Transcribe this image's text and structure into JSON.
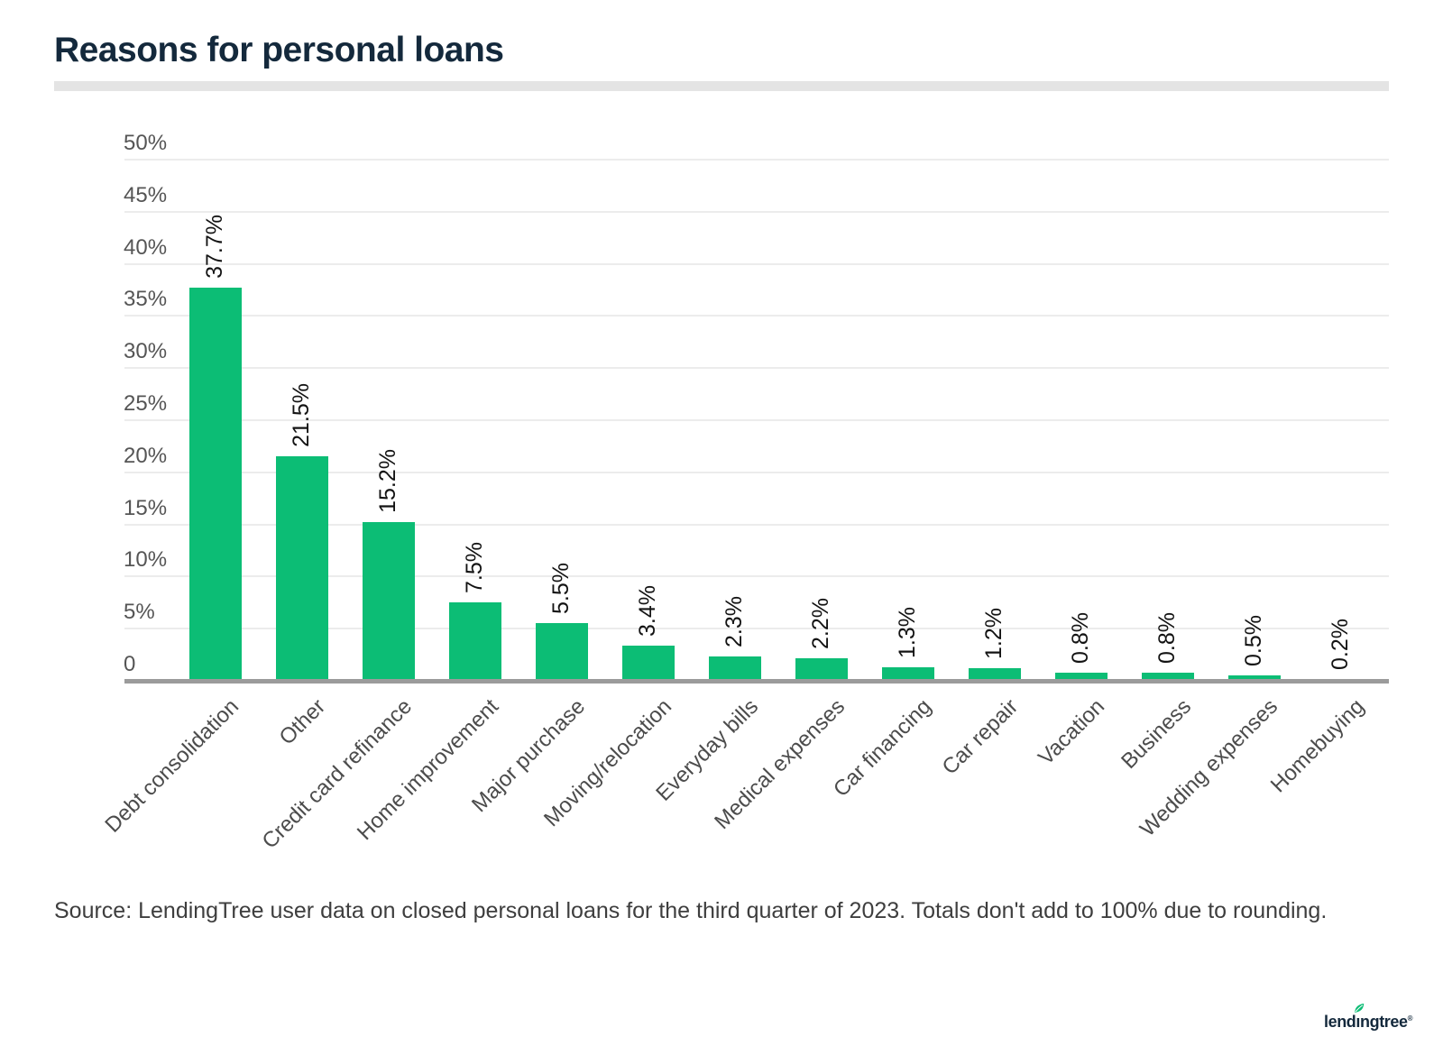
{
  "page": {
    "title": "Reasons for personal loans",
    "source_note": "Source: LendingTree user data on closed personal loans for the third quarter of 2023. Totals don't add to 100% due to rounding.",
    "logo": {
      "text_before_leaf": "lend",
      "leaf_letter": "ı",
      "text_after_leaf": "ngtree",
      "trademark": "®",
      "name": "lendingtree"
    }
  },
  "colors": {
    "bar_green": "#0CBD75",
    "title_navy": "#14293C",
    "gridline_gray": "#ECECEC",
    "axis_line_gray": "#9B9B9B",
    "ytick_gray": "#555555",
    "xlabel_gray": "#4C4C4C",
    "value_label_black": "#131313",
    "divider_gray": "#E4E4E4"
  },
  "chart_data": {
    "type": "bar",
    "title": "Reasons for personal loans",
    "categories": [
      "Debt consolidation",
      "Other",
      "Credit card refinance",
      "Home improvement",
      "Major purchase",
      "Moving/relocation",
      "Everyday bills",
      "Medical expenses",
      "Car financing",
      "Car repair",
      "Vacation",
      "Business",
      "Wedding expenses",
      "Homebuying"
    ],
    "values": [
      37.7,
      21.5,
      15.2,
      7.5,
      5.5,
      3.4,
      2.3,
      2.2,
      1.3,
      1.2,
      0.8,
      0.8,
      0.5,
      0.2
    ],
    "value_labels": [
      "37.7%",
      "21.5%",
      "15.2%",
      "7.5%",
      "5.5%",
      "3.4%",
      "2.3%",
      "2.2%",
      "1.3%",
      "1.2%",
      "0.8%",
      "0.8%",
      "0.5%",
      "0.2%"
    ],
    "xlabel": "",
    "ylabel": "",
    "y_axis": {
      "min": 0,
      "max": 50,
      "step": 5,
      "tick_labels": [
        "50%",
        "45%",
        "40%",
        "35%",
        "30%",
        "25%",
        "20%",
        "15%",
        "10%",
        "5%",
        "0"
      ]
    },
    "grid": true,
    "legend": "none",
    "bar_color": "#0CBD75"
  }
}
